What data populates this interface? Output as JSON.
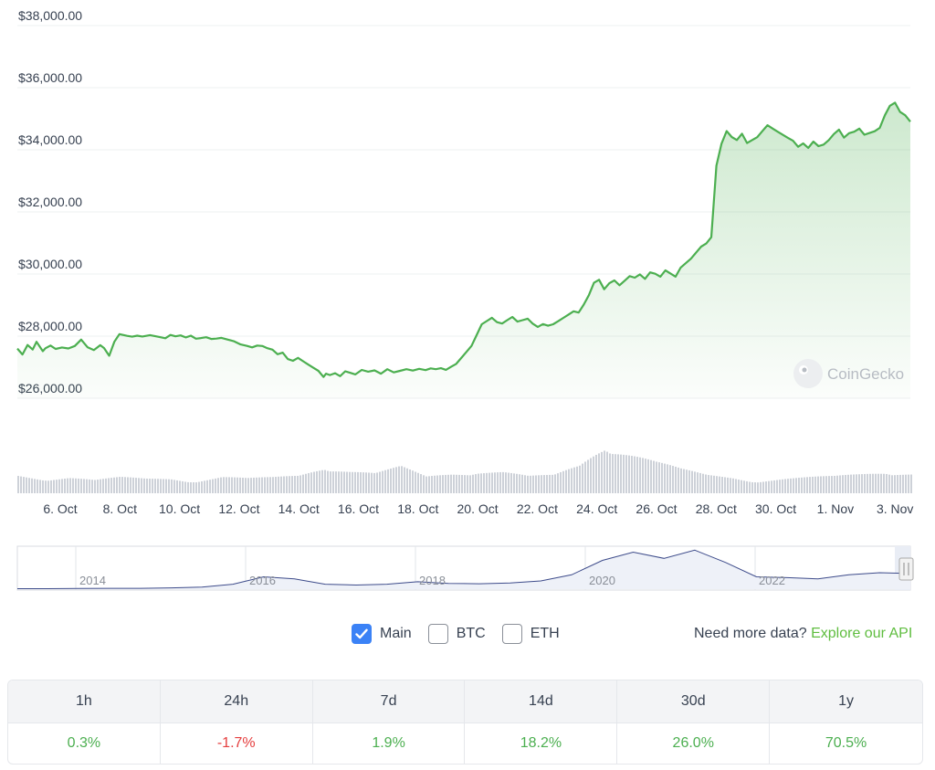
{
  "chart_data": {
    "type": "area",
    "y_ticks": [
      "$38,000.00",
      "$36,000.00",
      "$34,000.00",
      "$32,000.00",
      "$30,000.00",
      "$28,000.00",
      "$26,000.00"
    ],
    "ylim": [
      26000,
      38000
    ],
    "x_ticks": [
      "6. Oct",
      "8. Oct",
      "10. Oct",
      "12. Oct",
      "14. Oct",
      "16. Oct",
      "18. Oct",
      "20. Oct",
      "22. Oct",
      "24. Oct",
      "26. Oct",
      "28. Oct",
      "30. Oct",
      "1. Nov",
      "3. Nov"
    ],
    "price_series": {
      "x_days": [
        0,
        0.4,
        0.8,
        1.2,
        1.5,
        2.0,
        2.2,
        2.4,
        2.6,
        3.0,
        3.5,
        4.0,
        4.5,
        5.0,
        5.5,
        6.0,
        6.5,
        6.8,
        7.2,
        7.6,
        8.0,
        8.6,
        9.0,
        9.4,
        9.8,
        10.4,
        11.0,
        11.6,
        12.0,
        12.4,
        12.8,
        13.2,
        13.6,
        14.0,
        14.4,
        14.8,
        15.2,
        15.6,
        16.0,
        16.5,
        17.0,
        17.5,
        18.0,
        18.4,
        18.8,
        19.2,
        19.6,
        20.0,
        20.4,
        20.8,
        21.2,
        21.6,
        22.0,
        22.4,
        22.8,
        23.2,
        23.6,
        24.0,
        24.2,
        24.5,
        24.9,
        25.3,
        25.7,
        26.1,
        26.5,
        27.0,
        27.5,
        28.0,
        28.5,
        29.0,
        29.5,
        30.0,
        30.5,
        31.0,
        31.5,
        32.0,
        32.4,
        32.8,
        33.2,
        33.6,
        34.0,
        34.4,
        34.8,
        35.2,
        35.6,
        36.0,
        36.4,
        36.8,
        37.2,
        37.6,
        38.0,
        38.4,
        38.8,
        39.2,
        39.6,
        40.0,
        40.4,
        40.8,
        41.2,
        41.6,
        42.0,
        42.4,
        42.8,
        43.2,
        43.6,
        44.0,
        44.4,
        44.8,
        45.2,
        45.6,
        46.0,
        46.4,
        46.8,
        47.2,
        47.6,
        48.0,
        48.4,
        48.8,
        49.2,
        49.6,
        50.0,
        50.4,
        50.8,
        51.2,
        51.6,
        52.0,
        52.4,
        52.8,
        53.2,
        53.6,
        54.0,
        54.4,
        54.8,
        55.2,
        55.6,
        56.0,
        56.4,
        56.8,
        57.2,
        57.6,
        58.0,
        58.4,
        58.8,
        59.2,
        59.6,
        60.0,
        60.4,
        60.8,
        61.2,
        61.6,
        62.0,
        62.4,
        62.8,
        63.2,
        63.6,
        64.0,
        64.4,
        64.8,
        65.2,
        65.6,
        66.0,
        66.4,
        66.8,
        67.2,
        67.6,
        68.0,
        68.4,
        68.8,
        69.2,
        69.6,
        70.0
      ],
      "price": [
        27600,
        27400,
        27700,
        27550,
        27800,
        27500,
        27600,
        27650,
        27700,
        27600,
        27650,
        27620,
        27700,
        27900,
        27650,
        27550,
        27700,
        27600,
        27350,
        27800,
        28050,
        28000,
        27980,
        28020,
        28000,
        28050,
        28000,
        27950,
        28050,
        28000,
        28020,
        27950,
        28000,
        27900,
        27920,
        27950,
        27900,
        27920,
        27950,
        27900,
        27850,
        27750,
        27700,
        27650,
        27700,
        27680,
        27600,
        27550,
        27400,
        27450,
        27250,
        27200,
        27300,
        27200,
        27100,
        27000,
        26900,
        26700,
        26800,
        26750,
        26800,
        26700,
        26850,
        26800,
        26750,
        26900,
        26850,
        26900,
        26800,
        26950,
        26850,
        26900,
        26950,
        26900,
        26950,
        26900,
        26950,
        26920,
        26950,
        26900,
        27000,
        27100,
        27300,
        27500,
        27700,
        28050,
        28400,
        28500,
        28600,
        28450,
        28400,
        28500,
        28600,
        28450,
        28500,
        28550,
        28400,
        28300,
        28400,
        28350,
        28400,
        28500,
        28600,
        28700,
        28800,
        28750,
        29000,
        29300,
        29700,
        29800,
        29500,
        29700,
        29800,
        29650,
        29800,
        29950,
        29900,
        30000,
        29850,
        30050,
        30000,
        29900,
        30100,
        30000,
        29900,
        30200,
        30350,
        30500,
        30700,
        30900,
        31000,
        31200,
        33500,
        34200,
        34600,
        34400,
        34300,
        34500,
        34200,
        34300,
        34400,
        34600,
        34800,
        34700,
        34600,
        34500,
        34400,
        34300,
        34100,
        34200,
        34050,
        34250,
        34100,
        34150,
        34300,
        34500,
        34650,
        34400,
        34550,
        34600,
        34700,
        34500,
        34550,
        34600,
        34700,
        35100,
        35400,
        35500,
        35200,
        35100,
        34900,
        34700,
        34600
      ]
    },
    "volume_series": {
      "x_days": [
        0,
        2,
        4,
        6,
        8,
        10,
        12,
        14,
        16,
        18,
        20,
        22,
        24,
        26,
        28,
        30,
        32,
        34,
        36,
        38,
        40,
        42,
        44,
        46,
        48,
        50,
        52,
        54,
        56,
        58,
        60,
        62,
        64,
        66,
        68,
        70
      ],
      "level": [
        0.35,
        0.3,
        0.32,
        0.25,
        0.3,
        0.28,
        0.3,
        0.25,
        0.32,
        0.28,
        0.3,
        0.35,
        0.55,
        0.45,
        0.38,
        0.5,
        0.32,
        0.4,
        0.45,
        0.42,
        0.32,
        0.34,
        0.55,
        1.0,
        0.8,
        0.6,
        0.45,
        0.35,
        0.32,
        0.25,
        0.28,
        0.3,
        0.32,
        0.38,
        0.45,
        0.4
      ]
    },
    "navigator": {
      "x_ticks": [
        "2014",
        "2016",
        "2018",
        "2020",
        "2022"
      ],
      "values": [
        0.01,
        0.01,
        0.015,
        0.02,
        0.02,
        0.03,
        0.05,
        0.12,
        0.3,
        0.25,
        0.12,
        0.1,
        0.12,
        0.18,
        0.14,
        0.13,
        0.15,
        0.2,
        0.35,
        0.7,
        0.9,
        0.75,
        0.95,
        0.65,
        0.3,
        0.28,
        0.25,
        0.35,
        0.4,
        0.38
      ]
    }
  },
  "watermark": "CoinGecko",
  "toggles": [
    {
      "label": "Main",
      "checked": true
    },
    {
      "label": "BTC",
      "checked": false
    },
    {
      "label": "ETH",
      "checked": false
    }
  ],
  "more_data": {
    "text": "Need more data?",
    "link": "Explore our API"
  },
  "performance": [
    {
      "period": "1h",
      "value": "0.3%",
      "sign": "pos"
    },
    {
      "period": "24h",
      "value": "-1.7%",
      "sign": "neg"
    },
    {
      "period": "7d",
      "value": "1.9%",
      "sign": "pos"
    },
    {
      "period": "14d",
      "value": "18.2%",
      "sign": "pos"
    },
    {
      "period": "30d",
      "value": "26.0%",
      "sign": "pos"
    },
    {
      "period": "1y",
      "value": "70.5%",
      "sign": "pos"
    }
  ],
  "colors": {
    "line": "#4caf50",
    "positive": "#4caf50",
    "negative": "#e53e3e",
    "link": "#5fbd3f",
    "checkbox": "#3b82f6"
  }
}
